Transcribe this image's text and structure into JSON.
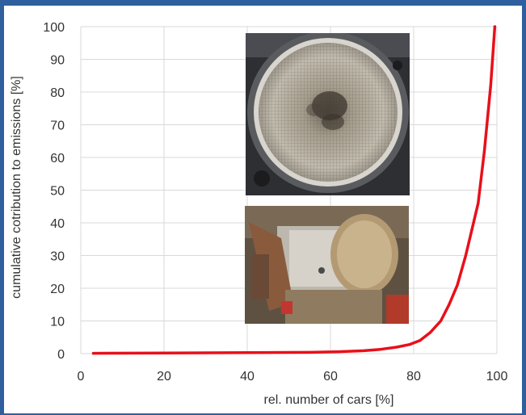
{
  "chart_data": {
    "type": "line",
    "title": "",
    "xlabel": "rel. number of cars [%]",
    "ylabel": "cumulative cotribution to emissions [%]",
    "xlim": [
      0,
      100
    ],
    "ylim": [
      0,
      100
    ],
    "x_ticks": [
      "0",
      "20",
      "40",
      "60",
      "80",
      "100"
    ],
    "y_ticks": [
      "0",
      "10",
      "20",
      "30",
      "40",
      "50",
      "60",
      "70",
      "80",
      "90",
      "100"
    ],
    "grid": true,
    "legend": "none",
    "series": [
      {
        "color": "#e8101a",
        "x": [
          3,
          20,
          40,
          55,
          62,
          68,
          72,
          76,
          79,
          81.5,
          84,
          86.5,
          88.5,
          90.5,
          92.5,
          94,
          95.5,
          97,
          98.5,
          99.5
        ],
        "y": [
          0.1,
          0.2,
          0.3,
          0.4,
          0.6,
          0.9,
          1.3,
          2,
          2.8,
          4,
          6.5,
          10,
          15,
          21,
          30,
          38,
          46,
          62,
          82,
          100
        ]
      }
    ]
  },
  "images": [
    {
      "name": "filter-face-photo"
    },
    {
      "name": "filter-cutaway-photo"
    }
  ]
}
